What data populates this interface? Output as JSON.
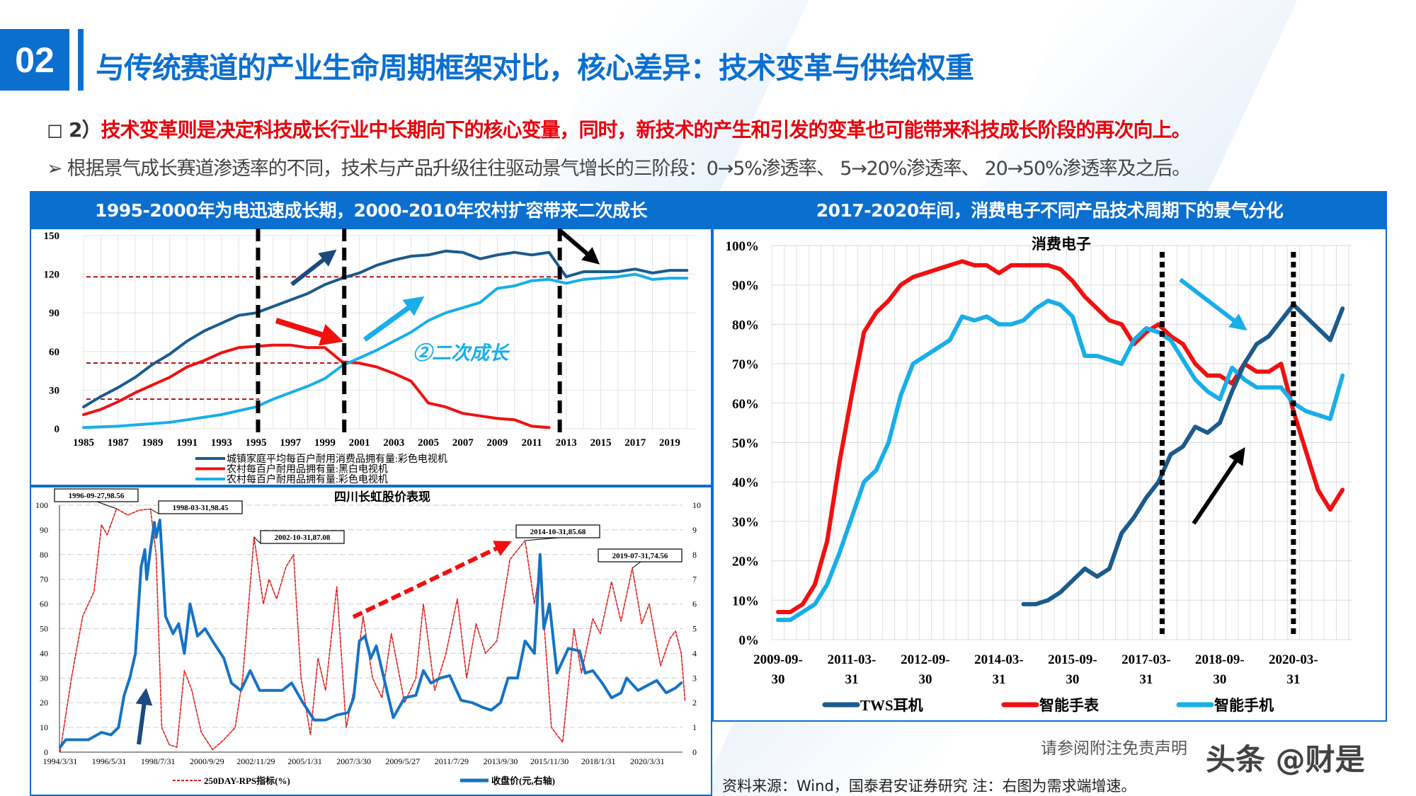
{
  "header": {
    "section_number": "02",
    "title": "与传统赛道的产业生命周期框架对比，核心差异：技术变革与供给权重",
    "point_prefix": "◻ 2）",
    "point_text": "技术变革则是决定科技成长行业中长期向下的核心变量，同时，新技术的产生和引发的变革也可能带来科技成长阶段的再次向上。",
    "sub_point": "➢ 根据景气成长赛道渗透率的不同，技术与产品升级往往驱动景气增长的三阶段：0→5%渗透率、 5→20%渗透率、 20→50%渗透率及之后。"
  },
  "panels": {
    "left_heading": "1995-2000年为电迅速成长期，2000-2010年农村扩容带来二次成长",
    "right_heading": "2017-2020年间，消费电子不同产品技术周期下的景气分化"
  },
  "footer": {
    "disclaimer": "请参阅附注免责声明",
    "watermark": "头条 @财是",
    "source": "资料来源：Wind，国泰君安证券研究  注：右图为需求端增速。"
  },
  "colors": {
    "brand_blue": "#0b6fd0",
    "dark_blue": "#1b5b8c",
    "red": "#f01010",
    "light_blue": "#18aee8",
    "ref_red": "#b01010"
  },
  "chart_data": [
    {
      "type": "line",
      "title": "",
      "ylim": [
        0,
        150
      ],
      "yticks": [
        0,
        30,
        60,
        90,
        120,
        150
      ],
      "x": [
        1985,
        1986,
        1987,
        1988,
        1989,
        1990,
        1991,
        1992,
        1993,
        1994,
        1995,
        1996,
        1997,
        1998,
        1999,
        2000,
        2001,
        2002,
        2003,
        2004,
        2005,
        2006,
        2007,
        2008,
        2009,
        2010,
        2011,
        2012,
        2013,
        2014,
        2015,
        2016,
        2017,
        2018,
        2019,
        2020
      ],
      "xticks": [
        "1985",
        "1987",
        "1989",
        "1991",
        "1993",
        "1995",
        "1997",
        "1999",
        "2001",
        "2003",
        "2005",
        "2007",
        "2009",
        "2011",
        "2013",
        "2015",
        "2017",
        "2019"
      ],
      "grid": true,
      "legend_position": "bottom",
      "series": [
        {
          "name": "城镇家庭平均每百户耐用消费品拥有量:彩色电视机",
          "color": "#1b5b8c",
          "values": [
            17,
            25,
            32,
            40,
            50,
            58,
            68,
            76,
            82,
            88,
            90,
            95,
            100,
            105,
            112,
            117,
            121,
            127,
            131,
            134,
            135,
            138,
            137,
            132,
            135,
            137,
            135,
            137,
            118,
            122,
            122,
            122,
            124,
            121,
            123,
            123
          ]
        },
        {
          "name": "农村每百户耐用品拥有量:黑白电视机",
          "color": "#f01010",
          "values": [
            11,
            15,
            21,
            28,
            34,
            40,
            48,
            53,
            59,
            63,
            64,
            65,
            65,
            63,
            63,
            52,
            51,
            48,
            43,
            37,
            20,
            17,
            12,
            10,
            8,
            7,
            2,
            1,
            null,
            null,
            null,
            null,
            null,
            null,
            null,
            null
          ]
        },
        {
          "name": "农村每百户耐用品拥有量:彩色电视机",
          "color": "#18aee8",
          "values": [
            1,
            1.5,
            2,
            3,
            4,
            5,
            7,
            9,
            11,
            14,
            17,
            23,
            28,
            33,
            39,
            49,
            55,
            61,
            68,
            75,
            84,
            90,
            94,
            98,
            109,
            111,
            115,
            116,
            113,
            116,
            117,
            118,
            120,
            116,
            117,
            117
          ]
        }
      ],
      "reference_lines": [
        118,
        51,
        23
      ],
      "phase_markers": [
        1995,
        2000,
        2012.5
      ],
      "annotation": "②二次成长"
    },
    {
      "type": "line",
      "title": "四川长虹股价表现",
      "ylim": [
        0,
        100
      ],
      "yticks": [
        0,
        10,
        20,
        30,
        40,
        50,
        60,
        70,
        80,
        90,
        100
      ],
      "y2lim": [
        0,
        10
      ],
      "y2ticks": [
        0,
        1,
        2,
        3,
        4,
        5,
        6,
        7,
        8,
        9,
        10
      ],
      "xticks": [
        "1994/3/31",
        "1996/5/31",
        "1998/7/31",
        "2000/9/29",
        "2002/11/29",
        "2005/1/31",
        "2007/3/30",
        "2009/5/27",
        "2011/7/29",
        "2013/9/30",
        "2015/11/30",
        "2018/1/31",
        "2020/3/31"
      ],
      "legend_position": "bottom",
      "series": [
        {
          "name": "250DAY-RPS指标(%)",
          "axis": "left",
          "color": "#e02020",
          "dashed": true,
          "points": [
            [
              "1994-03",
              0
            ],
            [
              "1994-09",
              30
            ],
            [
              "1995-03",
              55
            ],
            [
              "1995-09",
              65
            ],
            [
              "1996-01",
              92
            ],
            [
              "1996-04",
              88
            ],
            [
              "1996-09",
              98.56
            ],
            [
              "1997-03",
              96
            ],
            [
              "1997-09",
              98
            ],
            [
              "1998-03",
              98.45
            ],
            [
              "1998-06",
              80
            ],
            [
              "1998-09",
              10
            ],
            [
              "1999-01",
              3
            ],
            [
              "1999-05",
              2
            ],
            [
              "1999-09",
              33
            ],
            [
              "2000-01",
              25
            ],
            [
              "2000-06",
              8
            ],
            [
              "2000-12",
              1
            ],
            [
              "2001-06",
              5
            ],
            [
              "2001-12",
              10
            ],
            [
              "2002-04",
              30
            ],
            [
              "2002-10",
              87.08
            ],
            [
              "2003-03",
              60
            ],
            [
              "2003-06",
              70
            ],
            [
              "2003-10",
              62
            ],
            [
              "2004-03",
              75
            ],
            [
              "2004-07",
              80
            ],
            [
              "2004-11",
              30
            ],
            [
              "2005-04",
              7
            ],
            [
              "2005-08",
              38
            ],
            [
              "2005-12",
              25
            ],
            [
              "2006-06",
              67
            ],
            [
              "2006-11",
              10
            ],
            [
              "2007-03",
              25
            ],
            [
              "2007-08",
              55
            ],
            [
              "2008-01",
              30
            ],
            [
              "2008-06",
              22
            ],
            [
              "2008-11",
              48
            ],
            [
              "2009-06",
              20
            ],
            [
              "2009-12",
              30
            ],
            [
              "2010-04",
              60
            ],
            [
              "2010-10",
              25
            ],
            [
              "2011-04",
              40
            ],
            [
              "2011-10",
              62
            ],
            [
              "2012-03",
              30
            ],
            [
              "2012-08",
              52
            ],
            [
              "2013-01",
              40
            ],
            [
              "2013-07",
              45
            ],
            [
              "2014-02",
              78
            ],
            [
              "2014-10",
              85.68
            ],
            [
              "2015-03",
              60
            ],
            [
              "2015-06",
              75
            ],
            [
              "2015-12",
              10
            ],
            [
              "2016-06",
              4
            ],
            [
              "2016-12",
              50
            ],
            [
              "2017-04",
              32
            ],
            [
              "2017-10",
              54
            ],
            [
              "2018-02",
              48
            ],
            [
              "2018-08",
              69
            ],
            [
              "2019-01",
              53
            ],
            [
              "2019-07",
              74.56
            ],
            [
              "2019-12",
              52
            ],
            [
              "2020-04",
              60
            ],
            [
              "2020-10",
              35
            ],
            [
              "2021-03",
              46
            ],
            [
              "2021-06",
              49
            ],
            [
              "2021-09",
              40
            ],
            [
              "2021-11",
              21
            ]
          ]
        },
        {
          "name": "收盘价(元,右轴)",
          "axis": "right",
          "color": "#1673c4",
          "dashed": false,
          "points": [
            [
              "1994-03",
              0.2
            ],
            [
              "1994-06",
              0.5
            ],
            [
              "1995-06",
              0.5
            ],
            [
              "1996-01",
              0.8
            ],
            [
              "1996-06",
              0.7
            ],
            [
              "1996-10",
              1.0
            ],
            [
              "1997-01",
              2.3
            ],
            [
              "1997-04",
              3.0
            ],
            [
              "1997-07",
              4.0
            ],
            [
              "1997-10",
              7.5
            ],
            [
              "1997-12",
              8.2
            ],
            [
              "1998-01",
              7.0
            ],
            [
              "1998-03",
              8.2
            ],
            [
              "1998-05",
              9.3
            ],
            [
              "1998-06",
              8.7
            ],
            [
              "1998-08",
              9.4
            ],
            [
              "1998-11",
              5.5
            ],
            [
              "1999-03",
              4.8
            ],
            [
              "1999-06",
              5.2
            ],
            [
              "1999-09",
              4.0
            ],
            [
              "1999-12",
              6.0
            ],
            [
              "2000-04",
              4.7
            ],
            [
              "2000-08",
              5.0
            ],
            [
              "2000-12",
              4.5
            ],
            [
              "2001-06",
              3.8
            ],
            [
              "2001-10",
              2.8
            ],
            [
              "2002-03",
              2.5
            ],
            [
              "2002-08",
              3.3
            ],
            [
              "2003-01",
              2.5
            ],
            [
              "2003-06",
              2.5
            ],
            [
              "2004-01",
              2.5
            ],
            [
              "2004-06",
              2.8
            ],
            [
              "2004-12",
              2.0
            ],
            [
              "2005-06",
              1.3
            ],
            [
              "2005-12",
              1.3
            ],
            [
              "2006-06",
              1.5
            ],
            [
              "2006-12",
              1.6
            ],
            [
              "2007-03",
              2.2
            ],
            [
              "2007-06",
              4.5
            ],
            [
              "2007-09",
              4.7
            ],
            [
              "2007-12",
              3.8
            ],
            [
              "2008-03",
              4.3
            ],
            [
              "2008-07",
              3.0
            ],
            [
              "2008-12",
              1.4
            ],
            [
              "2009-06",
              2.2
            ],
            [
              "2009-12",
              2.3
            ],
            [
              "2010-04",
              3.3
            ],
            [
              "2010-08",
              2.8
            ],
            [
              "2011-01",
              3.0
            ],
            [
              "2011-06",
              3.1
            ],
            [
              "2011-12",
              2.1
            ],
            [
              "2012-06",
              2.0
            ],
            [
              "2012-12",
              1.8
            ],
            [
              "2013-04",
              1.7
            ],
            [
              "2013-09",
              2.0
            ],
            [
              "2014-01",
              3.0
            ],
            [
              "2014-06",
              3.0
            ],
            [
              "2014-10",
              4.5
            ],
            [
              "2015-03",
              4.0
            ],
            [
              "2015-06",
              8.0
            ],
            [
              "2015-08",
              5.0
            ],
            [
              "2015-11",
              6.0
            ],
            [
              "2016-03",
              3.2
            ],
            [
              "2016-09",
              4.2
            ],
            [
              "2017-03",
              4.1
            ],
            [
              "2017-06",
              3.2
            ],
            [
              "2017-10",
              3.3
            ],
            [
              "2018-03",
              2.8
            ],
            [
              "2018-08",
              2.2
            ],
            [
              "2019-01",
              2.4
            ],
            [
              "2019-04",
              3.0
            ],
            [
              "2019-10",
              2.5
            ],
            [
              "2020-03",
              2.7
            ],
            [
              "2020-08",
              2.9
            ],
            [
              "2021-01",
              2.4
            ],
            [
              "2021-06",
              2.6
            ],
            [
              "2021-09",
              2.8
            ]
          ]
        }
      ],
      "annotations": [
        {
          "text": "1996-09-27,98.56",
          "date": "1996-09",
          "value": 98.56
        },
        {
          "text": "1998-03-31,98.45",
          "date": "1998-03",
          "value": 98.45
        },
        {
          "text": "2002-10-31,87.08",
          "date": "2002-10",
          "value": 87.08
        },
        {
          "text": "2014-10-31,85.68",
          "date": "2014-10",
          "value": 85.68
        },
        {
          "text": "2019-07-31,74.56",
          "date": "2019-07",
          "value": 74.56
        }
      ]
    },
    {
      "type": "line",
      "title": "消费电子",
      "ylim": [
        0,
        100
      ],
      "yticks": [
        "0%",
        "10%",
        "20%",
        "30%",
        "40%",
        "50%",
        "60%",
        "70%",
        "80%",
        "90%",
        "100%"
      ],
      "x_start": "2009-09-30",
      "x_frequency": "quarterly",
      "xticks": [
        [
          "2009-09-",
          "30"
        ],
        [
          "2011-03-",
          "31"
        ],
        [
          "2012-09-",
          "30"
        ],
        [
          "2014-03-",
          "31"
        ],
        [
          "2015-09-",
          "30"
        ],
        [
          "2017-03-",
          "31"
        ],
        [
          "2018-09-",
          "30"
        ],
        [
          "2020-03-",
          "31"
        ]
      ],
      "grid": true,
      "legend_position": "bottom",
      "series": [
        {
          "name": "TWS耳机",
          "color": "#1b5b8c",
          "values": [
            null,
            null,
            null,
            null,
            null,
            null,
            null,
            null,
            null,
            null,
            null,
            null,
            null,
            null,
            null,
            null,
            null,
            null,
            null,
            null,
            9,
            9,
            10,
            12,
            15,
            18,
            16,
            18,
            27,
            31,
            36,
            40,
            47,
            49,
            54,
            52.5,
            55,
            63,
            70,
            75,
            77,
            81,
            85,
            82,
            79,
            76,
            84
          ]
        },
        {
          "name": "智能手表",
          "color": "#f01010",
          "values": [
            7,
            7,
            9,
            14,
            25,
            45,
            62,
            78,
            83,
            86,
            90,
            92,
            93,
            94,
            95,
            96,
            95,
            95,
            93,
            95,
            95,
            95,
            95,
            94,
            91,
            87,
            84,
            81,
            80,
            75,
            78,
            80,
            77,
            75,
            70,
            67,
            67,
            65,
            70,
            68,
            68,
            70,
            58,
            48,
            38,
            33,
            38
          ]
        },
        {
          "name": "智能手机",
          "color": "#18aee8",
          "values": [
            5,
            5,
            7,
            9,
            14,
            22,
            31,
            40,
            43,
            50,
            62,
            70,
            72,
            74,
            76,
            82,
            81,
            82,
            80,
            80,
            81,
            84,
            86,
            85,
            82,
            72,
            72,
            71,
            70,
            76,
            79,
            78,
            76,
            71,
            66,
            63,
            61,
            69,
            66,
            64,
            64,
            64,
            60,
            58,
            57,
            56,
            67
          ]
        }
      ],
      "phase_markers": [
        "2017-06-30",
        "2020-03-31"
      ]
    }
  ]
}
